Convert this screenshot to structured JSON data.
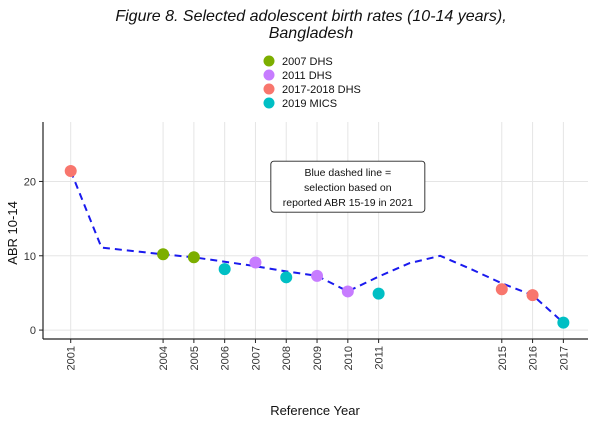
{
  "chart_data": {
    "type": "line",
    "title_line1": "Figure 8. Selected adolescent birth rates (10-14 years),",
    "title_line2": "Bangladesh",
    "xlabel": "Reference Year",
    "ylabel": "ABR 10-14",
    "ylim": [
      -1.2,
      28
    ],
    "xlim": [
      2000.1,
      2017.8
    ],
    "x_ticks": [
      2001,
      2004,
      2005,
      2006,
      2007,
      2008,
      2009,
      2010,
      2011,
      2015,
      2016,
      2017
    ],
    "y_ticks": [
      0,
      10,
      20
    ],
    "grid": true,
    "legend_position": "top",
    "legend": [
      {
        "name": "2007 DHS",
        "color": "#7CAE00"
      },
      {
        "name": "2011 DHS",
        "color": "#C77CFF"
      },
      {
        "name": "2017-2018 DHS",
        "color": "#F8766D"
      },
      {
        "name": "2019 MICS",
        "color": "#00BFC4"
      }
    ],
    "points": [
      {
        "x": 2001,
        "y": 21.4,
        "series": 2
      },
      {
        "x": 2004,
        "y": 10.2,
        "series": 0
      },
      {
        "x": 2005,
        "y": 9.8,
        "series": 0
      },
      {
        "x": 2006,
        "y": 8.2,
        "series": 3
      },
      {
        "x": 2007,
        "y": 9.1,
        "series": 1
      },
      {
        "x": 2008,
        "y": 7.1,
        "series": 3
      },
      {
        "x": 2009,
        "y": 7.3,
        "series": 1
      },
      {
        "x": 2010,
        "y": 5.2,
        "series": 1
      },
      {
        "x": 2011,
        "y": 4.9,
        "series": 3
      },
      {
        "x": 2015,
        "y": 5.5,
        "series": 2
      },
      {
        "x": 2016,
        "y": 4.7,
        "series": 2
      },
      {
        "x": 2017,
        "y": 1.0,
        "series": 3
      }
    ],
    "dashed_line": {
      "color": "#1a1aee",
      "x": [
        2001,
        2002,
        2004,
        2005,
        2006,
        2007,
        2008,
        2009,
        2010,
        2011,
        2012,
        2013,
        2014,
        2015,
        2016,
        2017
      ],
      "y": [
        21.4,
        11.1,
        10.2,
        9.8,
        9.2,
        8.6,
        7.9,
        7.3,
        5.2,
        7.2,
        9.0,
        10.0,
        8.2,
        6.3,
        4.7,
        1.0
      ]
    },
    "annotation": {
      "lines": [
        "Blue dashed line =",
        "selection based on",
        "reported ABR 15-19 in 2021"
      ],
      "x": 2010,
      "y": 19.3
    }
  }
}
